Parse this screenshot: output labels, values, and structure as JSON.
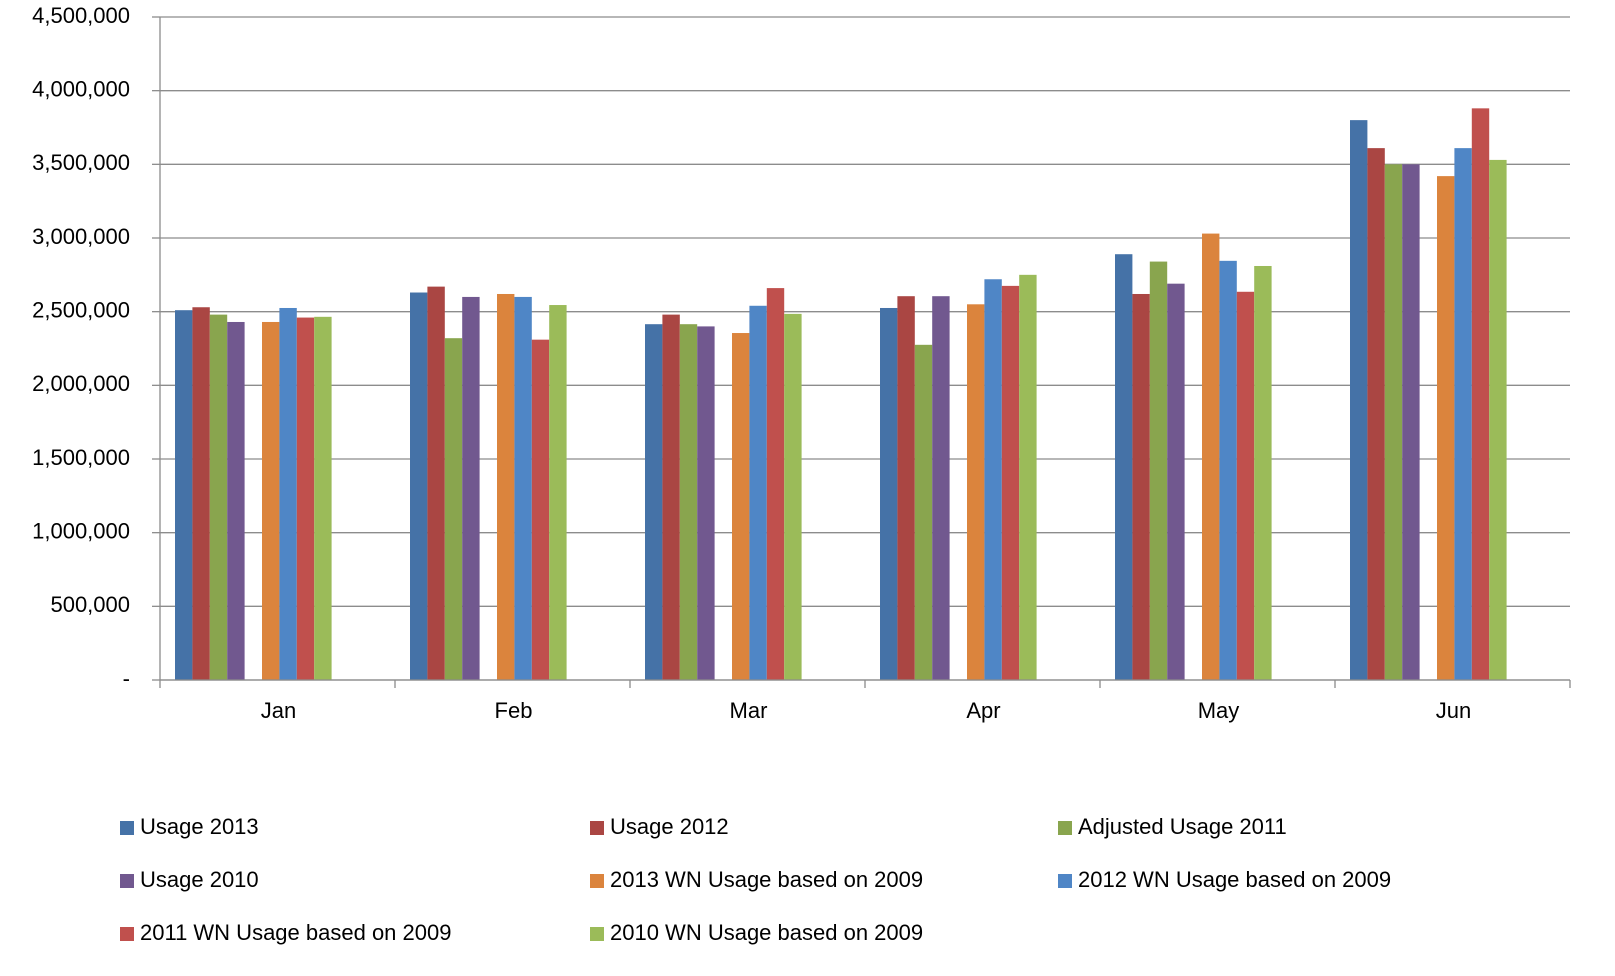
{
  "chart_data": {
    "type": "bar",
    "categories": [
      "Jan",
      "Feb",
      "Mar",
      "Apr",
      "May",
      "Jun"
    ],
    "series": [
      {
        "name": "Usage 2013",
        "color": "#4572a7",
        "values": [
          2510000,
          2630000,
          2415000,
          2525000,
          2890000,
          3800000
        ]
      },
      {
        "name": "Usage 2012",
        "color": "#aa4643",
        "values": [
          2530000,
          2670000,
          2480000,
          2605000,
          2620000,
          3610000
        ]
      },
      {
        "name": "Adjusted Usage 2011",
        "color": "#89a54e",
        "values": [
          2480000,
          2320000,
          2415000,
          2275000,
          2840000,
          3500000
        ]
      },
      {
        "name": "Usage 2010",
        "color": "#71588f",
        "values": [
          2430000,
          2600000,
          2400000,
          2605000,
          2690000,
          3500000
        ]
      },
      {
        "name": "2013 WN Usage based on 2009",
        "color": "#db843d",
        "values": [
          2430000,
          2620000,
          2355000,
          2550000,
          3030000,
          3420000
        ]
      },
      {
        "name": "2012 WN Usage based on 2009",
        "color": "#4f86c6",
        "values": [
          2525000,
          2600000,
          2540000,
          2720000,
          2845000,
          3610000
        ]
      },
      {
        "name": "2011 WN Usage based on 2009",
        "color": "#c0504d",
        "values": [
          2460000,
          2310000,
          2660000,
          2675000,
          2635000,
          3880000
        ]
      },
      {
        "name": "2010 WN Usage based on 2009",
        "color": "#9bbb59",
        "values": [
          2465000,
          2545000,
          2485000,
          2750000,
          2810000,
          3530000
        ]
      }
    ],
    "ylim": [
      0,
      4500000
    ],
    "yticks": [
      {
        "value": 0,
        "label": "-"
      },
      {
        "value": 500000,
        "label": "500,000"
      },
      {
        "value": 1000000,
        "label": "1,000,000"
      },
      {
        "value": 1500000,
        "label": "1,500,000"
      },
      {
        "value": 2000000,
        "label": "2,000,000"
      },
      {
        "value": 2500000,
        "label": "2,500,000"
      },
      {
        "value": 3000000,
        "label": "3,000,000"
      },
      {
        "value": 3500000,
        "label": "3,500,000"
      },
      {
        "value": 4000000,
        "label": "4,000,000"
      },
      {
        "value": 4500000,
        "label": "4,500,000"
      }
    ],
    "grid": true
  }
}
